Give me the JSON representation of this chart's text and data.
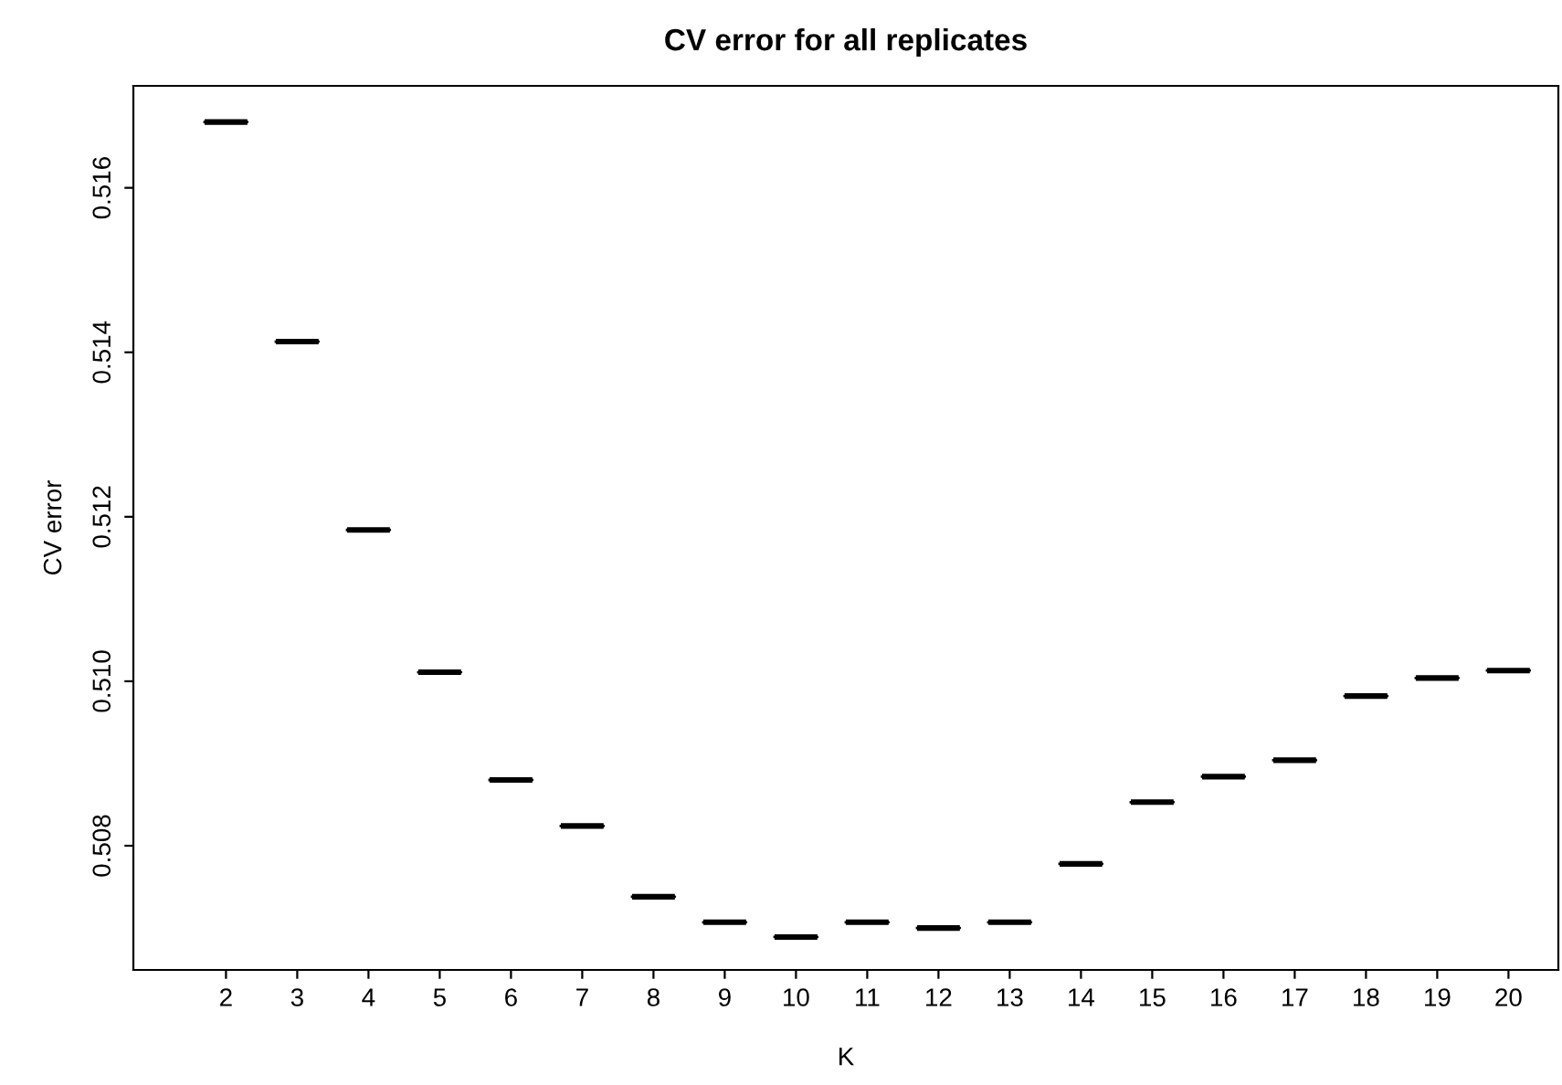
{
  "chart_data": {
    "type": "box",
    "title": "CV error for all replicates",
    "xlabel": "K",
    "ylabel": "CV error",
    "categories": [
      "2",
      "3",
      "4",
      "5",
      "6",
      "7",
      "8",
      "9",
      "10",
      "11",
      "12",
      "13",
      "14",
      "15",
      "16",
      "17",
      "18",
      "19",
      "20"
    ],
    "boxes": [
      {
        "low": 0.5168,
        "q1": 0.5168,
        "median": 0.5168,
        "q3": 0.5168,
        "high": 0.5168
      },
      {
        "low": 0.51413,
        "q1": 0.51413,
        "median": 0.51413,
        "q3": 0.51413,
        "high": 0.51413
      },
      {
        "low": 0.51184,
        "q1": 0.51184,
        "median": 0.51184,
        "q3": 0.51184,
        "high": 0.51184
      },
      {
        "low": 0.51011,
        "q1": 0.51011,
        "median": 0.51011,
        "q3": 0.51011,
        "high": 0.51011
      },
      {
        "low": 0.5088,
        "q1": 0.5088,
        "median": 0.5088,
        "q3": 0.5088,
        "high": 0.5088
      },
      {
        "low": 0.50824,
        "q1": 0.50824,
        "median": 0.50824,
        "q3": 0.50824,
        "high": 0.50824
      },
      {
        "low": 0.50738,
        "q1": 0.50738,
        "median": 0.50738,
        "q3": 0.50738,
        "high": 0.50738
      },
      {
        "low": 0.50707,
        "q1": 0.50707,
        "median": 0.50707,
        "q3": 0.50707,
        "high": 0.50707
      },
      {
        "low": 0.50689,
        "q1": 0.50689,
        "median": 0.50689,
        "q3": 0.50689,
        "high": 0.50689
      },
      {
        "low": 0.50707,
        "q1": 0.50707,
        "median": 0.50707,
        "q3": 0.50707,
        "high": 0.50707
      },
      {
        "low": 0.507,
        "q1": 0.507,
        "median": 0.507,
        "q3": 0.507,
        "high": 0.507
      },
      {
        "low": 0.50707,
        "q1": 0.50707,
        "median": 0.50707,
        "q3": 0.50707,
        "high": 0.50707
      },
      {
        "low": 0.50778,
        "q1": 0.50778,
        "median": 0.50778,
        "q3": 0.50778,
        "high": 0.50778
      },
      {
        "low": 0.50853,
        "q1": 0.50853,
        "median": 0.50853,
        "q3": 0.50853,
        "high": 0.50853
      },
      {
        "low": 0.50884,
        "q1": 0.50884,
        "median": 0.50884,
        "q3": 0.50884,
        "high": 0.50884
      },
      {
        "low": 0.50904,
        "q1": 0.50904,
        "median": 0.50904,
        "q3": 0.50904,
        "high": 0.50904
      },
      {
        "low": 0.50982,
        "q1": 0.50982,
        "median": 0.50982,
        "q3": 0.50982,
        "high": 0.50982
      },
      {
        "low": 0.51004,
        "q1": 0.51004,
        "median": 0.51004,
        "q3": 0.51004,
        "high": 0.51004
      },
      {
        "low": 0.51013,
        "q1": 0.51013,
        "median": 0.51013,
        "q3": 0.51013,
        "high": 0.51013
      }
    ],
    "color": "#000000",
    "ylim": [
      0.50649,
      0.51724
    ],
    "yticks": [
      {
        "value": 0.508,
        "label": "0.508"
      },
      {
        "value": 0.51,
        "label": "0.510"
      },
      {
        "value": 0.512,
        "label": "0.512"
      },
      {
        "value": 0.514,
        "label": "0.514"
      },
      {
        "value": 0.516,
        "label": "0.516"
      }
    ]
  }
}
